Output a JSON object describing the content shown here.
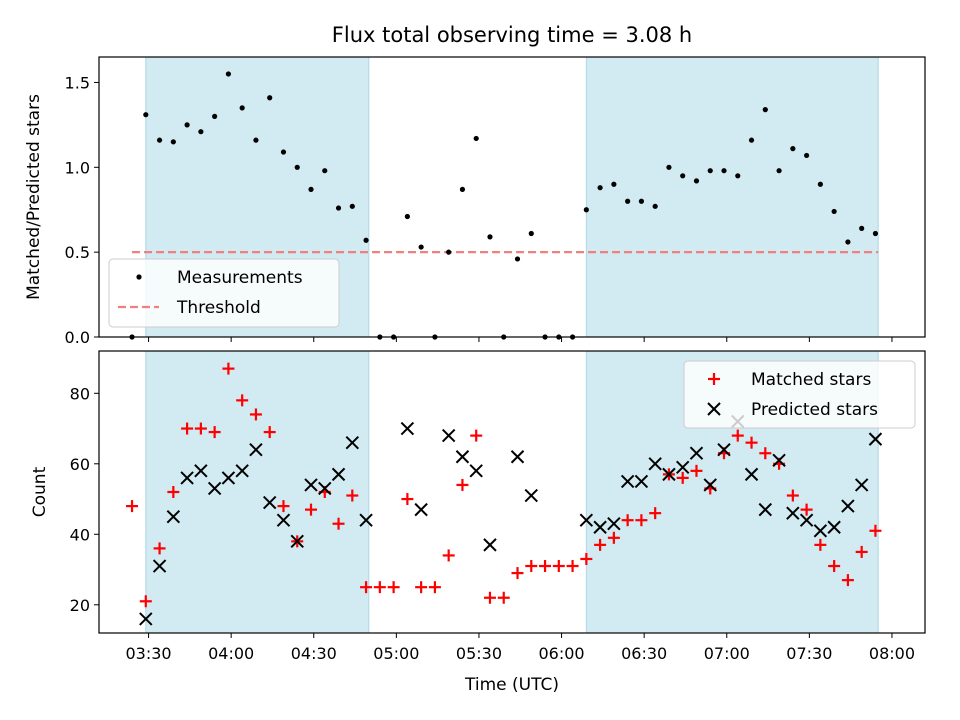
{
  "figure": {
    "title": "Flux total observing time = 3.08 h"
  },
  "colors": {
    "band": "#add8e6",
    "measurement": "#000000",
    "threshold": "#f08080",
    "matched": "#ff0000",
    "predicted": "#000000"
  },
  "chart_data": [
    {
      "type": "scatter",
      "id": "ratio",
      "ylabel": "Matched/Predicted stars",
      "xlabel": "",
      "xlim": [
        "03:12",
        "08:12"
      ],
      "ylim": [
        0,
        1.65
      ],
      "yticks": [
        0.0,
        0.5,
        1.0,
        1.5
      ],
      "ytick_labels": [
        "0.0",
        "0.5",
        "1.0",
        "1.5"
      ],
      "show_x_tick_labels": false,
      "shaded_intervals": [
        [
          "03:29",
          "04:50"
        ],
        [
          "06:09",
          "07:55"
        ]
      ],
      "threshold": {
        "label": "Threshold",
        "y": 0.5,
        "x_range": [
          "03:24",
          "07:55"
        ]
      },
      "legend_position": "lower left",
      "series": [
        {
          "name": "Measurements",
          "marker": "dot",
          "points": [
            [
              "03:24",
              0.0
            ],
            [
              "03:29",
              1.31
            ],
            [
              "03:34",
              1.16
            ],
            [
              "03:39",
              1.15
            ],
            [
              "03:44",
              1.25
            ],
            [
              "03:49",
              1.21
            ],
            [
              "03:54",
              1.3
            ],
            [
              "03:59",
              1.55
            ],
            [
              "04:04",
              1.35
            ],
            [
              "04:09",
              1.16
            ],
            [
              "04:14",
              1.41
            ],
            [
              "04:19",
              1.09
            ],
            [
              "04:24",
              1.0
            ],
            [
              "04:29",
              0.87
            ],
            [
              "04:34",
              0.98
            ],
            [
              "04:39",
              0.76
            ],
            [
              "04:44",
              0.77
            ],
            [
              "04:49",
              0.57
            ],
            [
              "04:54",
              0.0
            ],
            [
              "04:59",
              0.0
            ],
            [
              "05:04",
              0.71
            ],
            [
              "05:09",
              0.53
            ],
            [
              "05:14",
              0.0
            ],
            [
              "05:19",
              0.5
            ],
            [
              "05:24",
              0.87
            ],
            [
              "05:29",
              1.17
            ],
            [
              "05:34",
              0.59
            ],
            [
              "05:39",
              0.0
            ],
            [
              "05:44",
              0.46
            ],
            [
              "05:49",
              0.61
            ],
            [
              "05:54",
              0.0
            ],
            [
              "05:59",
              0.0
            ],
            [
              "06:04",
              0.0
            ],
            [
              "06:09",
              0.75
            ],
            [
              "06:14",
              0.88
            ],
            [
              "06:19",
              0.9
            ],
            [
              "06:24",
              0.8
            ],
            [
              "06:29",
              0.8
            ],
            [
              "06:34",
              0.77
            ],
            [
              "06:39",
              1.0
            ],
            [
              "06:44",
              0.95
            ],
            [
              "06:49",
              0.92
            ],
            [
              "06:54",
              0.98
            ],
            [
              "06:59",
              0.98
            ],
            [
              "07:04",
              0.95
            ],
            [
              "07:09",
              1.16
            ],
            [
              "07:14",
              1.34
            ],
            [
              "07:19",
              0.98
            ],
            [
              "07:24",
              1.11
            ],
            [
              "07:29",
              1.07
            ],
            [
              "07:34",
              0.9
            ],
            [
              "07:39",
              0.74
            ],
            [
              "07:44",
              0.56
            ],
            [
              "07:49",
              0.64
            ],
            [
              "07:54",
              0.61
            ]
          ]
        }
      ]
    },
    {
      "type": "scatter",
      "id": "counts",
      "ylabel": "Count",
      "xlabel": "Time (UTC)",
      "xlim": [
        "03:12",
        "08:12"
      ],
      "ylim": [
        12,
        92
      ],
      "yticks": [
        20,
        40,
        60,
        80
      ],
      "ytick_labels": [
        "20",
        "40",
        "60",
        "80"
      ],
      "xticks": [
        "03:30",
        "04:00",
        "04:30",
        "05:00",
        "05:30",
        "06:00",
        "06:30",
        "07:00",
        "07:30",
        "08:00"
      ],
      "xtick_labels": [
        "03:30",
        "04:00",
        "04:30",
        "05:00",
        "05:30",
        "06:00",
        "06:30",
        "07:00",
        "07:30",
        "08:00"
      ],
      "shaded_intervals": [
        [
          "03:29",
          "04:50"
        ],
        [
          "06:09",
          "07:55"
        ]
      ],
      "legend_position": "upper right",
      "series": [
        {
          "name": "Matched stars",
          "marker": "plus",
          "points": [
            [
              "03:24",
              48
            ],
            [
              "03:29",
              21
            ],
            [
              "03:34",
              36
            ],
            [
              "03:39",
              52
            ],
            [
              "03:44",
              70
            ],
            [
              "03:49",
              70
            ],
            [
              "03:54",
              69
            ],
            [
              "03:59",
              87
            ],
            [
              "04:04",
              78
            ],
            [
              "04:09",
              74
            ],
            [
              "04:14",
              69
            ],
            [
              "04:19",
              48
            ],
            [
              "04:24",
              38
            ],
            [
              "04:29",
              47
            ],
            [
              "04:34",
              52
            ],
            [
              "04:39",
              43
            ],
            [
              "04:44",
              51
            ],
            [
              "04:49",
              25
            ],
            [
              "04:54",
              25
            ],
            [
              "04:59",
              25
            ],
            [
              "05:04",
              50
            ],
            [
              "05:09",
              25
            ],
            [
              "05:14",
              25
            ],
            [
              "05:19",
              34
            ],
            [
              "05:24",
              54
            ],
            [
              "05:29",
              68
            ],
            [
              "05:34",
              22
            ],
            [
              "05:39",
              22
            ],
            [
              "05:44",
              29
            ],
            [
              "05:49",
              31
            ],
            [
              "05:54",
              31
            ],
            [
              "05:59",
              31
            ],
            [
              "06:04",
              31
            ],
            [
              "06:09",
              33
            ],
            [
              "06:14",
              37
            ],
            [
              "06:19",
              39
            ],
            [
              "06:24",
              44
            ],
            [
              "06:29",
              44
            ],
            [
              "06:34",
              46
            ],
            [
              "06:39",
              57
            ],
            [
              "06:44",
              56
            ],
            [
              "06:49",
              58
            ],
            [
              "06:54",
              53
            ],
            [
              "06:59",
              63
            ],
            [
              "07:04",
              68
            ],
            [
              "07:09",
              66
            ],
            [
              "07:14",
              63
            ],
            [
              "07:19",
              60
            ],
            [
              "07:24",
              51
            ],
            [
              "07:29",
              47
            ],
            [
              "07:34",
              37
            ],
            [
              "07:39",
              31
            ],
            [
              "07:44",
              27
            ],
            [
              "07:49",
              35
            ],
            [
              "07:54",
              41
            ]
          ]
        },
        {
          "name": "Predicted stars",
          "marker": "x",
          "points": [
            [
              "03:29",
              16
            ],
            [
              "03:34",
              31
            ],
            [
              "03:39",
              45
            ],
            [
              "03:44",
              56
            ],
            [
              "03:49",
              58
            ],
            [
              "03:54",
              53
            ],
            [
              "03:59",
              56
            ],
            [
              "04:04",
              58
            ],
            [
              "04:09",
              64
            ],
            [
              "04:14",
              49
            ],
            [
              "04:19",
              44
            ],
            [
              "04:24",
              38
            ],
            [
              "04:29",
              54
            ],
            [
              "04:34",
              53
            ],
            [
              "04:39",
              57
            ],
            [
              "04:44",
              66
            ],
            [
              "04:49",
              44
            ],
            [
              "05:04",
              70
            ],
            [
              "05:09",
              47
            ],
            [
              "05:19",
              68
            ],
            [
              "05:24",
              62
            ],
            [
              "05:29",
              58
            ],
            [
              "05:34",
              37
            ],
            [
              "05:44",
              62
            ],
            [
              "05:49",
              51
            ],
            [
              "06:09",
              44
            ],
            [
              "06:14",
              42
            ],
            [
              "06:19",
              43
            ],
            [
              "06:24",
              55
            ],
            [
              "06:29",
              55
            ],
            [
              "06:34",
              60
            ],
            [
              "06:39",
              57
            ],
            [
              "06:44",
              59
            ],
            [
              "06:49",
              63
            ],
            [
              "06:54",
              54
            ],
            [
              "06:59",
              64
            ],
            [
              "07:04",
              72
            ],
            [
              "07:09",
              57
            ],
            [
              "07:14",
              47
            ],
            [
              "07:19",
              61
            ],
            [
              "07:24",
              46
            ],
            [
              "07:29",
              44
            ],
            [
              "07:34",
              41
            ],
            [
              "07:39",
              42
            ],
            [
              "07:44",
              48
            ],
            [
              "07:49",
              54
            ],
            [
              "07:54",
              67
            ]
          ]
        }
      ]
    }
  ]
}
